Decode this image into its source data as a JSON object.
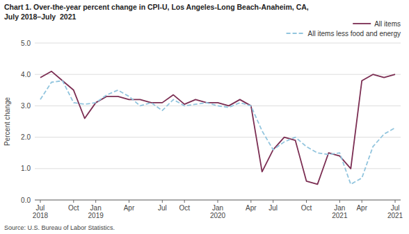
{
  "chart_data": {
    "type": "line",
    "title": "Chart 1. Over-the-year percent change in CPI-U, Los Angeles-Long Beach-Anaheim, CA,",
    "subtitle": "July 2018–July  2021",
    "y_label": "Percent change",
    "annotations": [
      "Source: U.S. Bureau of Labor Statistics."
    ],
    "categories": [
      "Jul\n2018",
      null,
      null,
      "Oct",
      null,
      "Jan\n2019",
      null,
      null,
      "Apr",
      null,
      null,
      "Jul",
      null,
      "Oct",
      null,
      null,
      "Jan\n2020",
      null,
      null,
      "Apr",
      null,
      "Jul",
      null,
      null,
      "Oct",
      null,
      null,
      "Jan\n2021",
      null,
      "Apr",
      null,
      null,
      "Jul\n2021"
    ],
    "series": [
      {
        "name": "All items",
        "color": "#7B2D52",
        "line_style": "solid",
        "values": [
          3.9,
          4.1,
          3.8,
          3.5,
          2.6,
          3.1,
          3.3,
          3.3,
          3.2,
          3.2,
          3.1,
          3.1,
          3.35,
          3.05,
          3.2,
          3.1,
          3.1,
          3.0,
          3.2,
          3.0,
          0.9,
          1.6,
          2.0,
          1.9,
          0.6,
          0.5,
          1.5,
          1.4,
          1.0,
          3.8,
          4.0,
          3.9,
          4.0
        ]
      },
      {
        "name": "All items less food and energy",
        "color": "#92C5DE",
        "line_style": "dashed",
        "values": [
          3.2,
          3.75,
          3.8,
          3.1,
          3.05,
          3.1,
          3.35,
          3.5,
          3.3,
          3.0,
          3.1,
          2.85,
          3.2,
          3.0,
          3.05,
          3.1,
          3.0,
          2.95,
          3.1,
          3.0,
          2.2,
          1.6,
          1.85,
          2.0,
          1.7,
          1.5,
          1.45,
          1.5,
          0.5,
          0.7,
          1.7,
          2.1,
          2.3
        ]
      }
    ],
    "ylim": [
      0,
      5
    ],
    "yticks": [
      {
        "value": 0,
        "label": "0.0"
      },
      {
        "value": 1,
        "label": "1.0"
      },
      {
        "value": 2,
        "label": "2.0"
      },
      {
        "value": 3,
        "label": "3.0"
      },
      {
        "value": 4,
        "label": "4.0"
      },
      {
        "value": 5,
        "label": "5.0"
      }
    ],
    "grid": true,
    "legend": "upper right"
  }
}
